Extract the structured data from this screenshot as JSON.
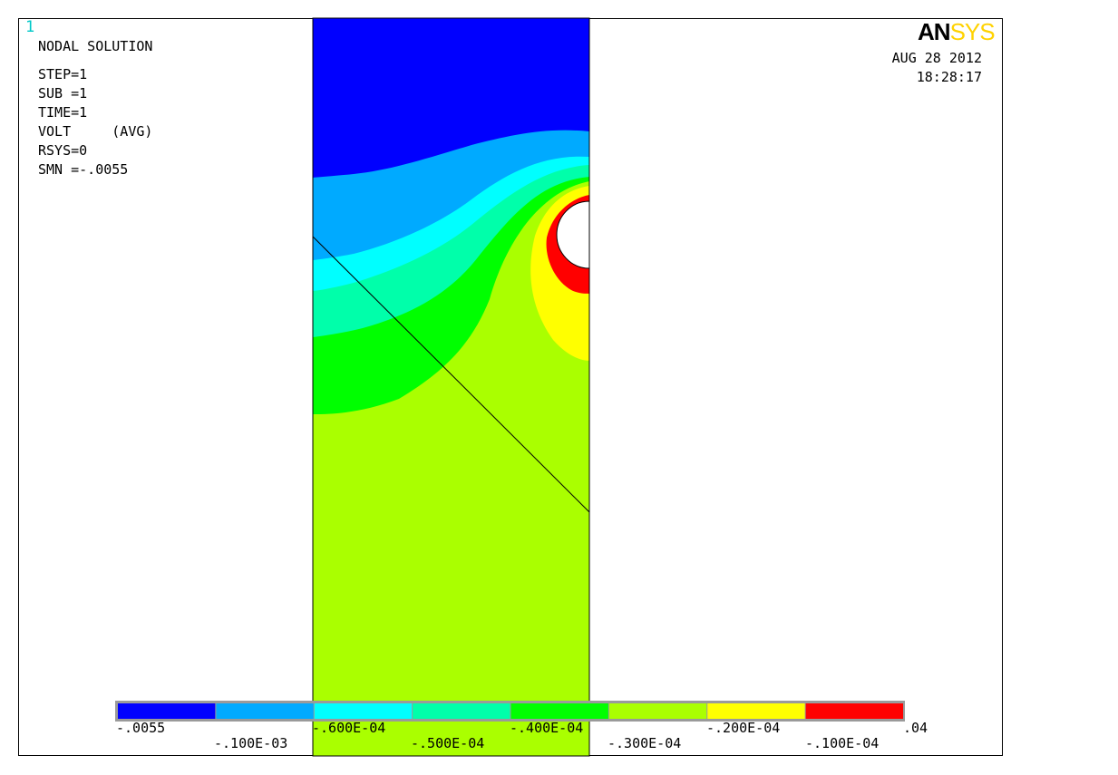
{
  "window_number": "1",
  "logo": {
    "part1": "AN",
    "part2": "SYS"
  },
  "info_block": {
    "title": "NODAL SOLUTION",
    "lines": [
      "STEP=1",
      "SUB =1",
      "TIME=1",
      "VOLT     (AVG)",
      "RSYS=0",
      "SMN =-.0055"
    ]
  },
  "date": "AUG 28 2012",
  "time": "18:28:17",
  "legend": {
    "colors": [
      "#0000ff",
      "#00aaff",
      "#00ffff",
      "#00ffaa",
      "#00ff00",
      "#aaff00",
      "#ffff00",
      "#ff0000"
    ],
    "labels_top": [
      ".0055",
      ".600E-04",
      ".400E-04",
      ".200E-04",
      ".04"
    ],
    "labels_top_prefix": [
      "-",
      "-",
      "-",
      "-",
      ""
    ],
    "labels_bottom": [
      "-.100E-03",
      "-.500E-04",
      "-.300E-04",
      "-.100E-04"
    ]
  },
  "contour_colors": {
    "blue": "#0000ff",
    "lightblue": "#00aaff",
    "cyan": "#00ffff",
    "aquagreen": "#00ffaa",
    "green": "#00ff00",
    "yellowgreen": "#aaff00",
    "yellow": "#ffff00",
    "red": "#ff0000"
  }
}
